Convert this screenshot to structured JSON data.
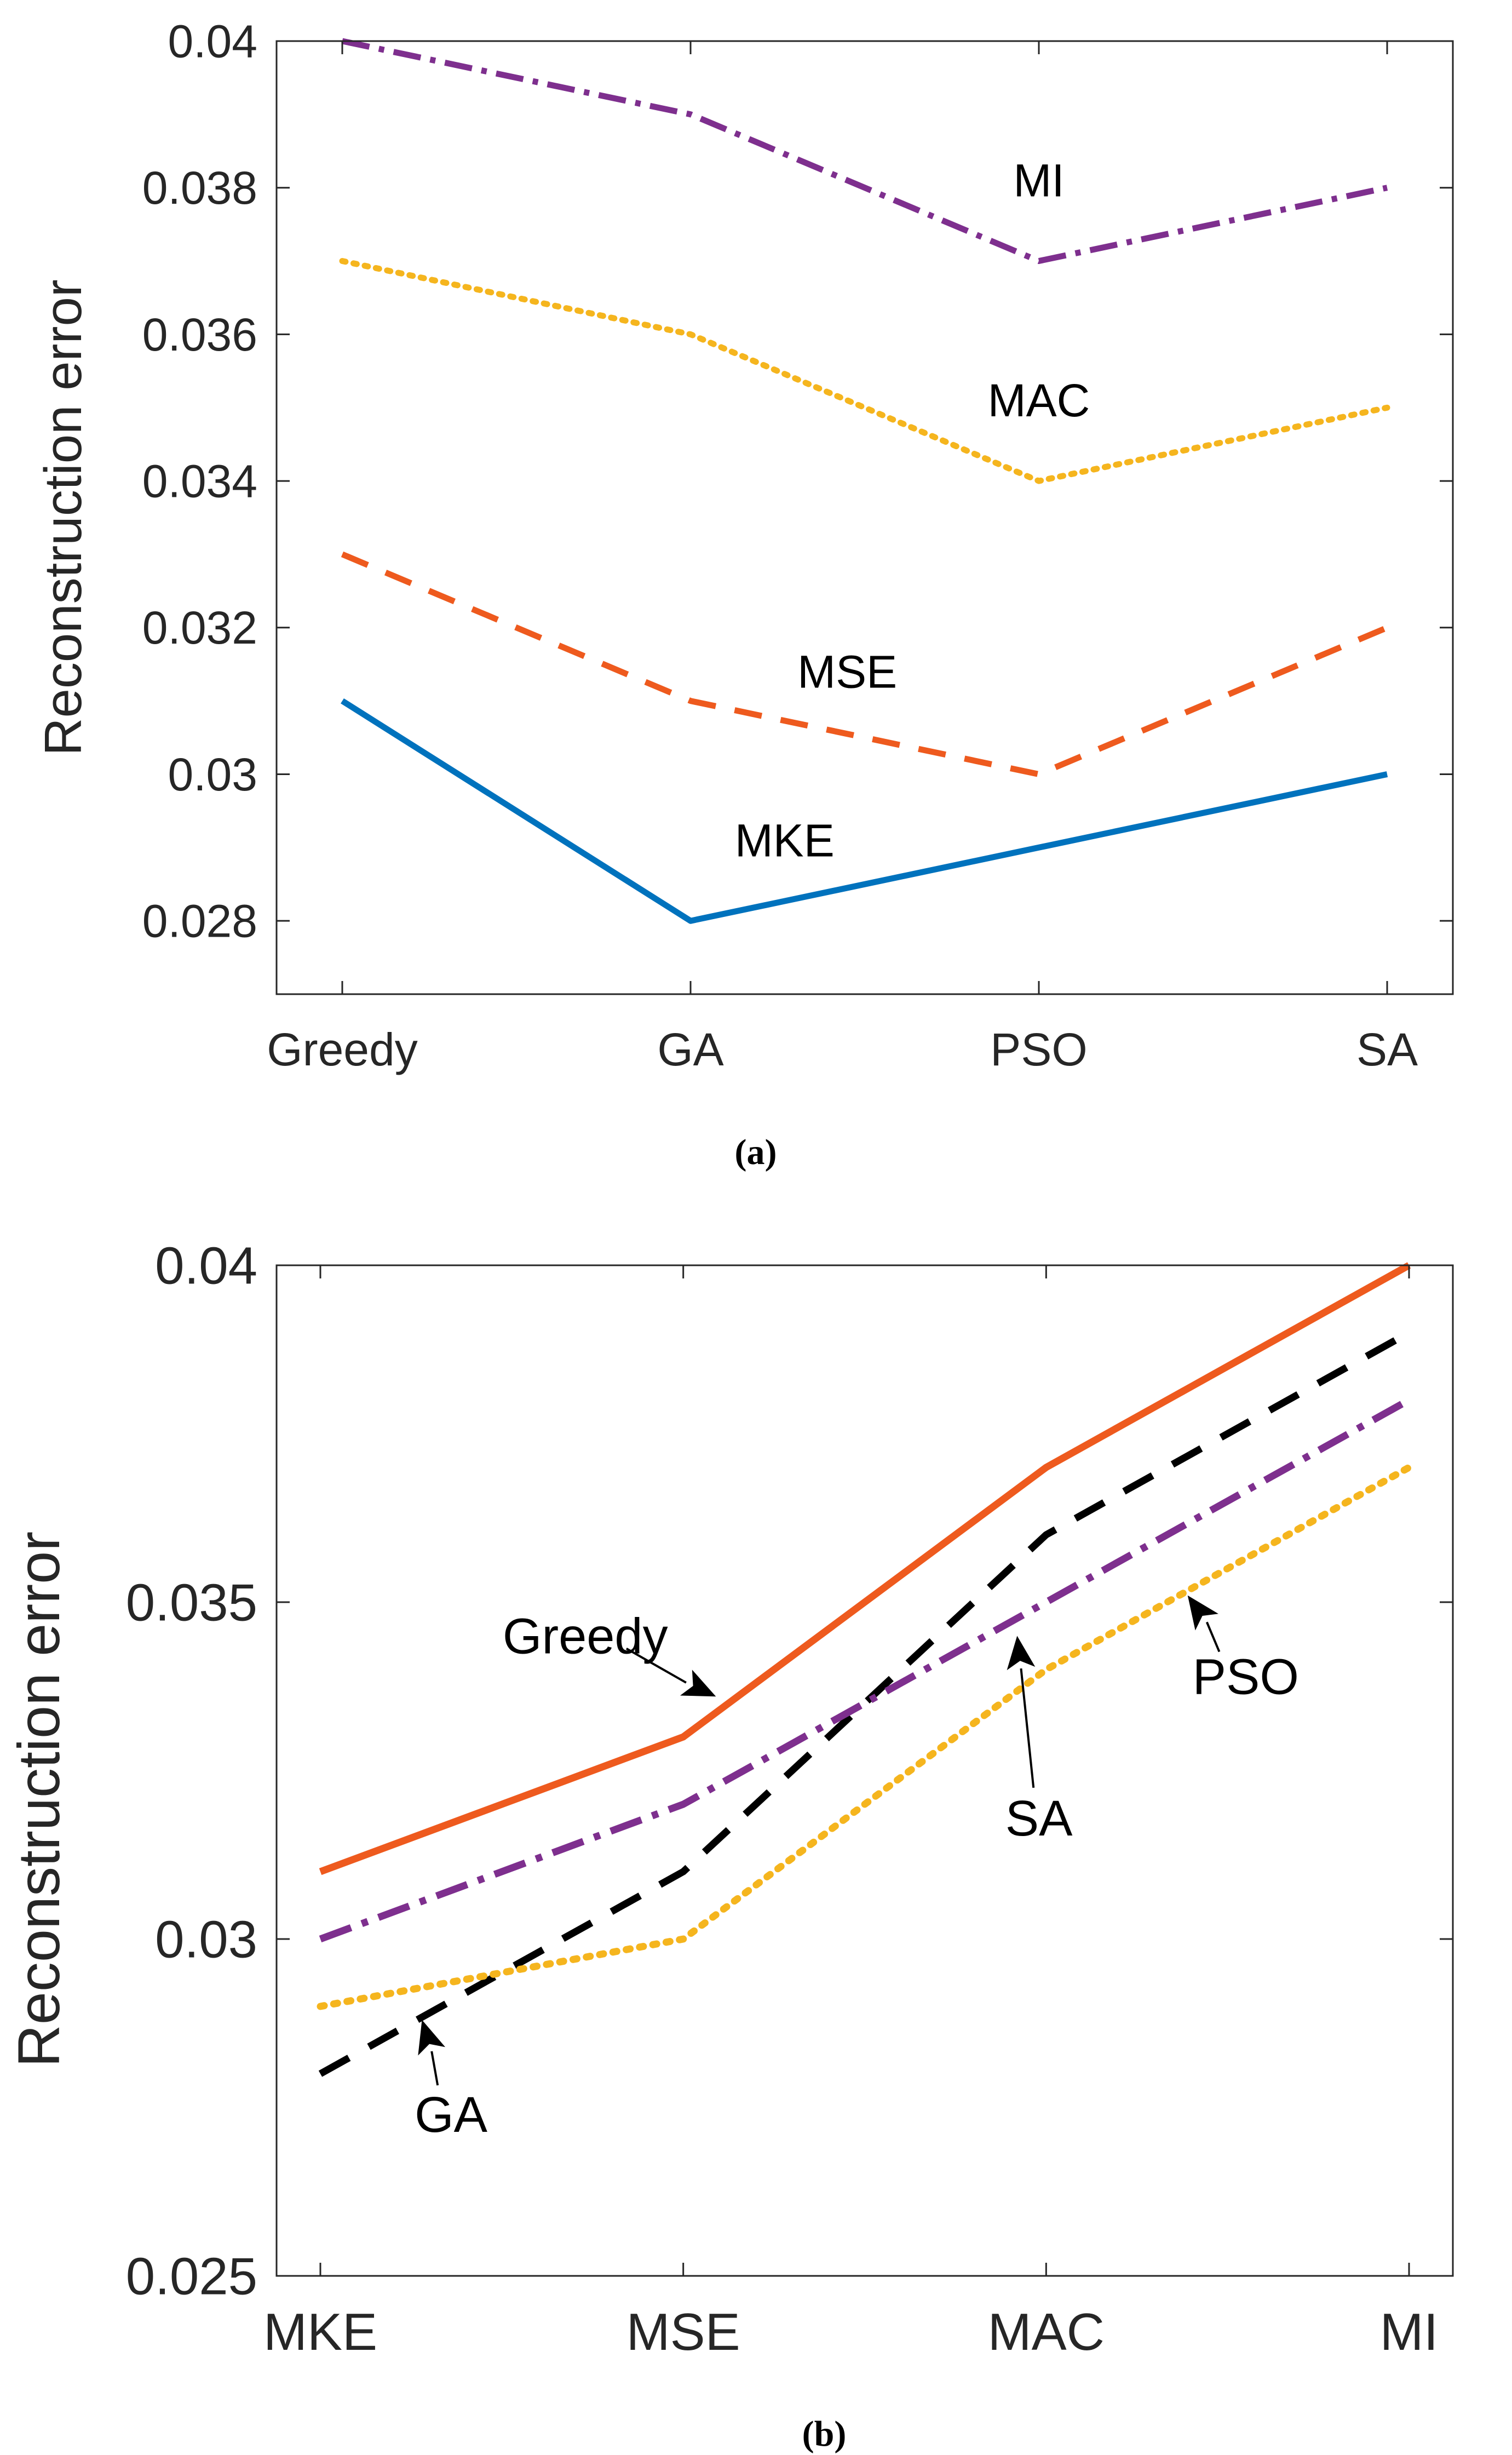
{
  "colors": {
    "blue": "#0072BD",
    "orange_red": "#EE5A1E",
    "yellow": "#F5B51E",
    "purple": "#7E2F8E",
    "black": "#000000"
  },
  "chart_data": [
    {
      "type": "line",
      "caption": "(a)",
      "categories": [
        "Greedy",
        "GA",
        "PSO",
        "SA"
      ],
      "ylabel": "Reconstruction error",
      "xlabel": "",
      "ylim": [
        0.027,
        0.04
      ],
      "yticks": [
        0.028,
        0.03,
        0.032,
        0.034,
        0.036,
        0.038,
        0.04
      ],
      "ytick_labels": [
        "0.028",
        "0.03",
        "0.032",
        "0.034",
        "0.036",
        "0.038",
        "0.04"
      ],
      "grid": false,
      "series": [
        {
          "name": "MKE",
          "values": [
            0.031,
            0.028,
            0.029,
            0.03
          ],
          "color": "#0072BD",
          "style": "solid"
        },
        {
          "name": "MSE",
          "values": [
            0.033,
            0.031,
            0.03,
            0.032
          ],
          "color": "#EE5A1E",
          "style": "dashed"
        },
        {
          "name": "MAC",
          "values": [
            0.037,
            0.036,
            0.034,
            0.035
          ],
          "color": "#F5B51E",
          "style": "dotted"
        },
        {
          "name": "MI",
          "values": [
            0.04,
            0.039,
            0.037,
            0.038
          ],
          "color": "#7E2F8E",
          "style": "dashdot"
        }
      ],
      "annotations": [
        {
          "text": "MI",
          "x": 2.0,
          "y": 0.0381
        },
        {
          "text": "MAC",
          "x": 2.0,
          "y": 0.0351
        },
        {
          "text": "MSE",
          "x": 1.45,
          "y": 0.0314
        },
        {
          "text": "MKE",
          "x": 1.27,
          "y": 0.0291
        }
      ]
    },
    {
      "type": "line",
      "caption": "(b)",
      "categories": [
        "MKE",
        "MSE",
        "MAC",
        "MI"
      ],
      "ylabel": "Reconstruction error",
      "xlabel": "",
      "ylim": [
        0.025,
        0.04
      ],
      "yticks": [
        0.025,
        0.03,
        0.035,
        0.04
      ],
      "ytick_labels": [
        "0.025",
        "0.03",
        "0.035",
        "0.04"
      ],
      "grid": false,
      "series": [
        {
          "name": "Greedy",
          "values": [
            0.031,
            0.033,
            0.037,
            0.04
          ],
          "color": "#EE5A1E",
          "style": "solid"
        },
        {
          "name": "GA",
          "values": [
            0.028,
            0.031,
            0.036,
            0.039
          ],
          "color": "#000000",
          "style": "dashed"
        },
        {
          "name": "SA",
          "values": [
            0.03,
            0.032,
            0.035,
            0.038
          ],
          "color": "#7E2F8E",
          "style": "dashdot"
        },
        {
          "name": "PSO",
          "values": [
            0.029,
            0.03,
            0.034,
            0.037
          ],
          "color": "#F5B51E",
          "style": "dotted"
        }
      ],
      "annotations": [
        {
          "text": "Greedy",
          "x": 0.73,
          "y": 0.0345,
          "arrow_to": [
            1.09,
            0.0336
          ]
        },
        {
          "text": "SA",
          "x": 1.98,
          "y": 0.0318,
          "arrow_to": [
            1.92,
            0.0345
          ]
        },
        {
          "text": "PSO",
          "x": 2.55,
          "y": 0.0339,
          "arrow_to": [
            2.39,
            0.0351
          ]
        },
        {
          "text": "GA",
          "x": 0.36,
          "y": 0.0274,
          "arrow_to": [
            0.28,
            0.0288
          ]
        }
      ]
    }
  ]
}
